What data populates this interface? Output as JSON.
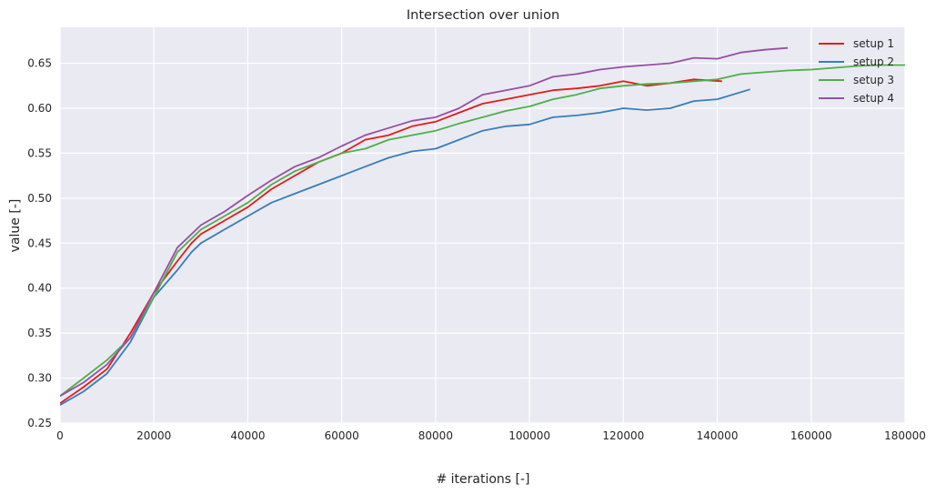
{
  "chart_data": {
    "type": "line",
    "title": "Intersection over union",
    "xlabel": "# iterations [-]",
    "ylabel": "value [-]",
    "xlim": [
      0,
      180000
    ],
    "ylim": [
      0.25,
      0.69
    ],
    "xticks": [
      0,
      20000,
      40000,
      60000,
      80000,
      100000,
      120000,
      140000,
      160000,
      180000
    ],
    "yticks": [
      0.25,
      0.3,
      0.35,
      0.4,
      0.45,
      0.5,
      0.55,
      0.6,
      0.65
    ],
    "grid": true,
    "legend_position": "top-right",
    "background": "#eaeaf2",
    "series": [
      {
        "name": "setup 1",
        "color": "#e41a1c",
        "x": [
          0,
          5000,
          10000,
          15000,
          20000,
          25000,
          28000,
          30000,
          35000,
          40000,
          45000,
          50000,
          55000,
          60000,
          65000,
          70000,
          75000,
          80000,
          85000,
          90000,
          95000,
          100000,
          105000,
          110000,
          115000,
          120000,
          125000,
          130000,
          135000,
          141000
        ],
        "y": [
          0.272,
          0.29,
          0.31,
          0.35,
          0.395,
          0.43,
          0.45,
          0.46,
          0.475,
          0.49,
          0.51,
          0.525,
          0.54,
          0.55,
          0.565,
          0.57,
          0.58,
          0.585,
          0.595,
          0.605,
          0.61,
          0.615,
          0.62,
          0.622,
          0.625,
          0.63,
          0.625,
          0.628,
          0.632,
          0.63
        ]
      },
      {
        "name": "setup 2",
        "color": "#377eb8",
        "x": [
          0,
          5000,
          10000,
          15000,
          20000,
          25000,
          28000,
          30000,
          35000,
          40000,
          45000,
          50000,
          55000,
          60000,
          65000,
          70000,
          75000,
          80000,
          85000,
          90000,
          95000,
          100000,
          105000,
          110000,
          115000,
          120000,
          125000,
          130000,
          135000,
          140000,
          147000
        ],
        "y": [
          0.27,
          0.285,
          0.305,
          0.34,
          0.39,
          0.42,
          0.44,
          0.45,
          0.465,
          0.48,
          0.495,
          0.505,
          0.515,
          0.525,
          0.535,
          0.545,
          0.552,
          0.555,
          0.565,
          0.575,
          0.58,
          0.582,
          0.59,
          0.592,
          0.595,
          0.6,
          0.598,
          0.6,
          0.608,
          0.61,
          0.621
        ]
      },
      {
        "name": "setup 3",
        "color": "#4daf4a",
        "x": [
          0,
          5000,
          10000,
          15000,
          20000,
          25000,
          28000,
          30000,
          35000,
          40000,
          45000,
          50000,
          55000,
          60000,
          65000,
          70000,
          75000,
          80000,
          85000,
          90000,
          95000,
          100000,
          105000,
          110000,
          115000,
          120000,
          125000,
          130000,
          135000,
          140000,
          145000,
          150000,
          155000,
          160000,
          165000,
          170000,
          175000,
          180000
        ],
        "y": [
          0.28,
          0.3,
          0.32,
          0.345,
          0.39,
          0.44,
          0.455,
          0.465,
          0.48,
          0.495,
          0.515,
          0.53,
          0.54,
          0.55,
          0.555,
          0.565,
          0.57,
          0.575,
          0.583,
          0.59,
          0.597,
          0.602,
          0.61,
          0.615,
          0.622,
          0.625,
          0.627,
          0.628,
          0.63,
          0.632,
          0.638,
          0.64,
          0.642,
          0.643,
          0.645,
          0.647,
          0.648,
          0.648
        ]
      },
      {
        "name": "setup 4",
        "color": "#984ea3",
        "x": [
          0,
          5000,
          10000,
          15000,
          20000,
          25000,
          28000,
          30000,
          35000,
          40000,
          45000,
          50000,
          55000,
          60000,
          65000,
          70000,
          75000,
          80000,
          85000,
          90000,
          95000,
          100000,
          105000,
          110000,
          115000,
          120000,
          125000,
          130000,
          135000,
          140000,
          145000,
          150000,
          155000
        ],
        "y": [
          0.28,
          0.295,
          0.315,
          0.345,
          0.395,
          0.445,
          0.46,
          0.47,
          0.485,
          0.503,
          0.52,
          0.535,
          0.545,
          0.558,
          0.57,
          0.578,
          0.586,
          0.59,
          0.6,
          0.615,
          0.62,
          0.625,
          0.635,
          0.638,
          0.643,
          0.646,
          0.648,
          0.65,
          0.656,
          0.655,
          0.662,
          0.665,
          0.667
        ]
      }
    ]
  }
}
